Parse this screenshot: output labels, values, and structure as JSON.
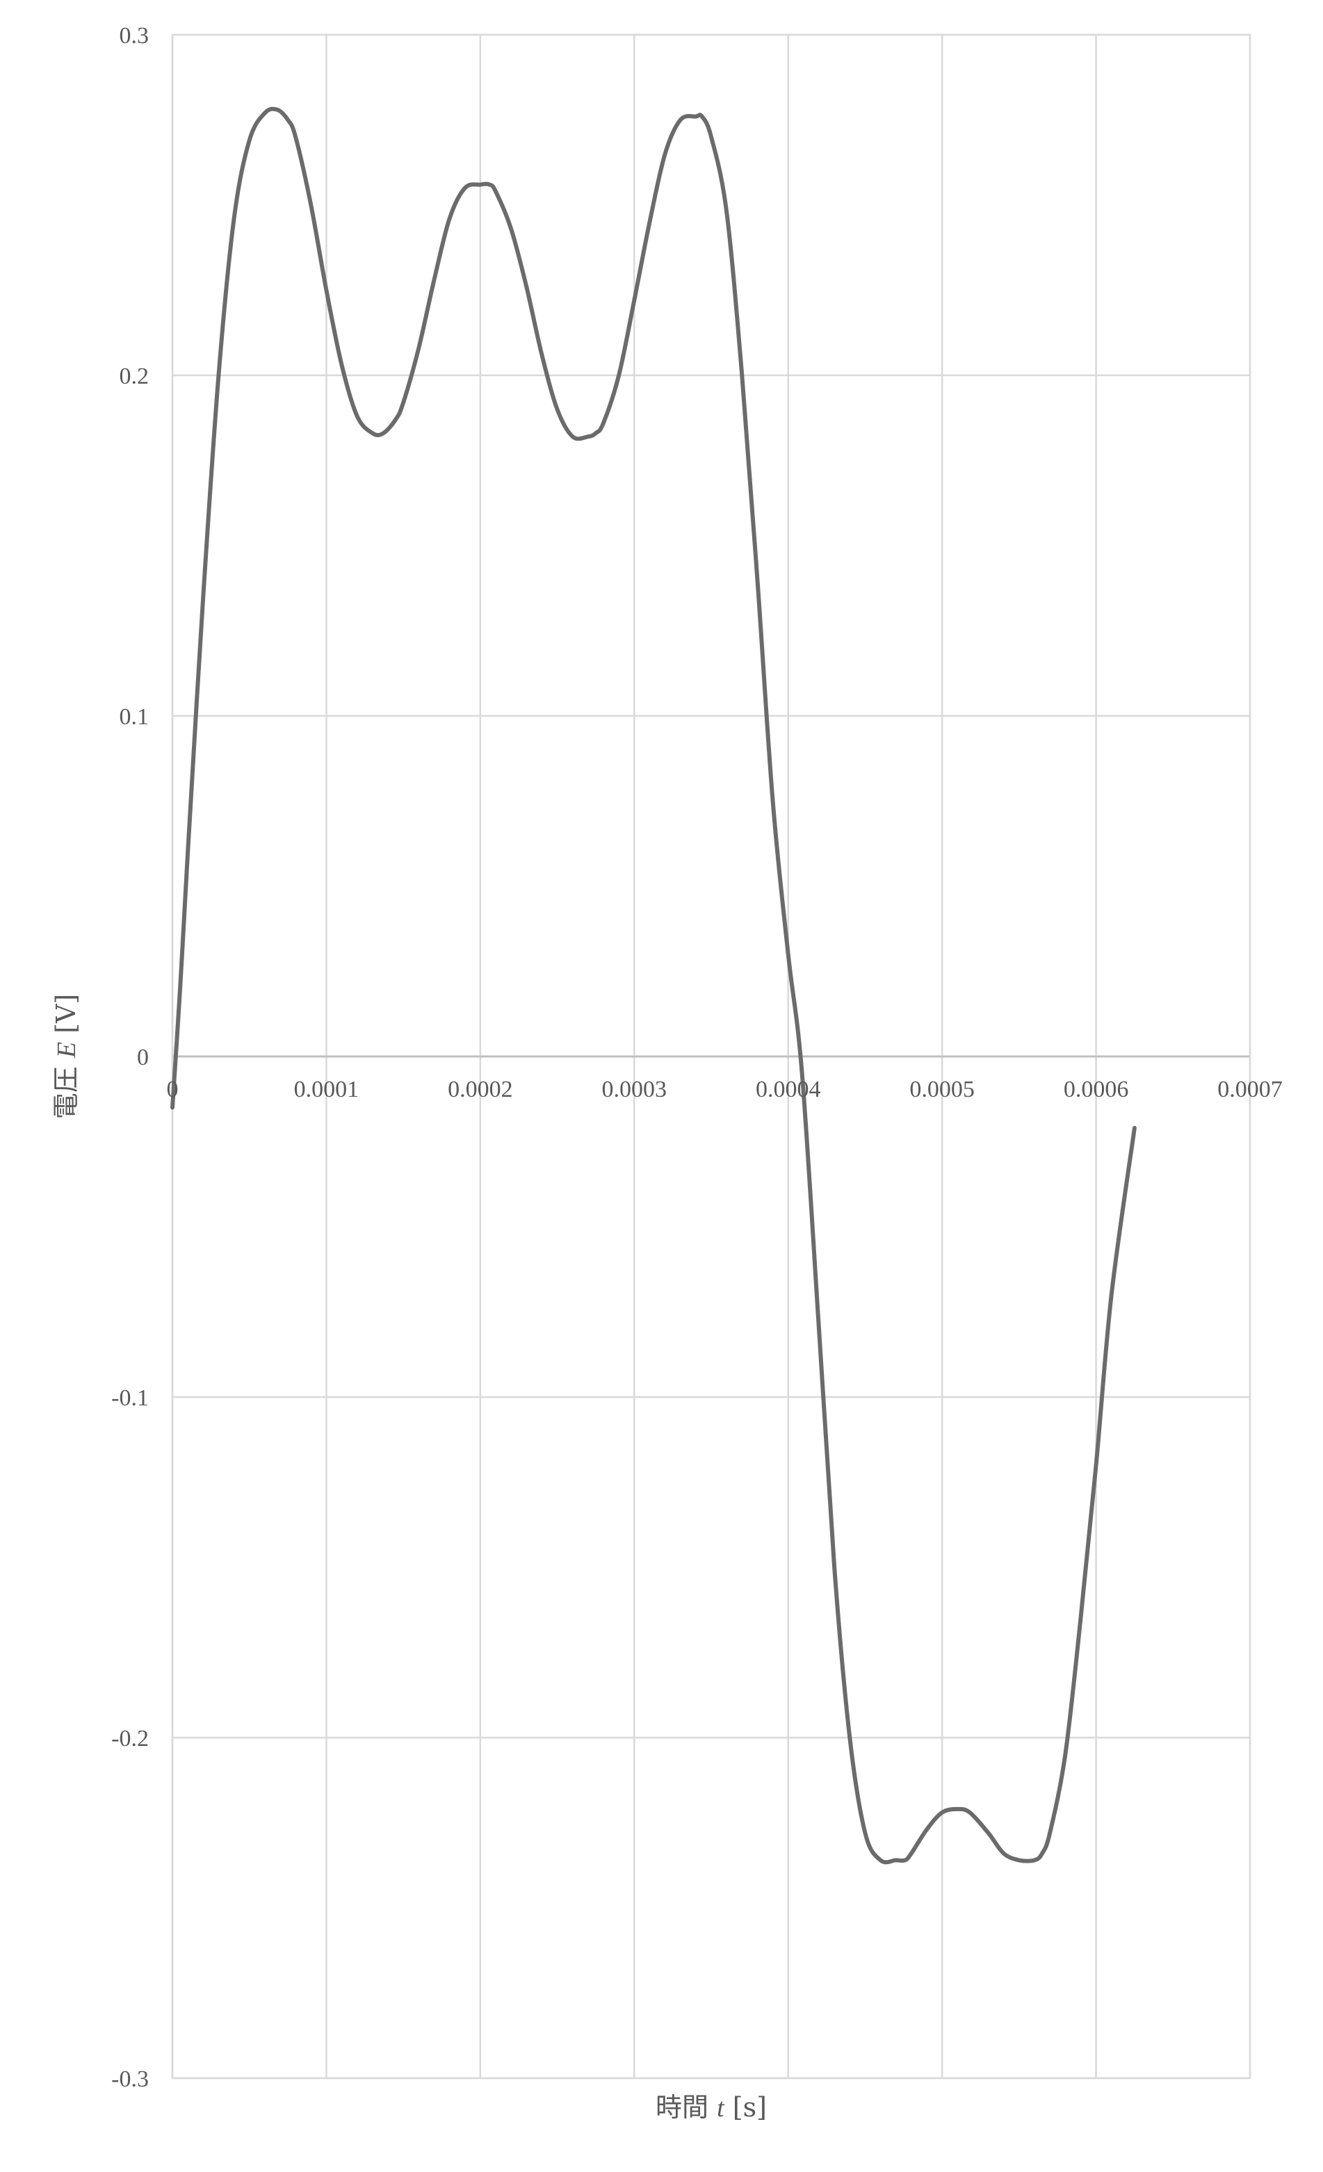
{
  "chart_data": {
    "type": "line",
    "title": "",
    "xlabel": {
      "prefix": "時間 ",
      "var": "t",
      "suffix": " [s]"
    },
    "ylabel": {
      "prefix": "電圧 ",
      "var": "E",
      "suffix": " [V]"
    },
    "xlim": [
      0,
      0.0007
    ],
    "ylim": [
      -0.3,
      0.3
    ],
    "x_ticks": [
      0,
      0.0001,
      0.0002,
      0.0003,
      0.0004,
      0.0005,
      0.0006,
      0.0007
    ],
    "x_tick_labels": [
      "0",
      "0.0001",
      "0.0002",
      "0.0003",
      "0.0004",
      "0.0005",
      "0.0006",
      "0.0007"
    ],
    "y_ticks": [
      0.3,
      0.2,
      0.1,
      0,
      -0.1,
      -0.2,
      -0.3
    ],
    "y_tick_labels": [
      "0.3",
      "0.2",
      "0.1",
      "0",
      "-0.1",
      "-0.2",
      "-0.3"
    ],
    "grid": true,
    "legend": "none",
    "colors": {
      "series": "#6b6b6b",
      "grid": "#d9d9d9",
      "axis": "#bfbfbf",
      "text": "#595959"
    },
    "series": [
      {
        "x": [
          0,
          5e-06,
          1e-05,
          2e-05,
          3e-05,
          4e-05,
          5e-05,
          6e-05,
          6.8e-05,
          7.5e-05,
          8e-05,
          9e-05,
          0.0001,
          0.00011,
          0.00012,
          0.00013,
          0.000137,
          0.000145,
          0.00015,
          0.00016,
          0.00017,
          0.00018,
          0.00019,
          0.0002,
          0.000206,
          0.00021,
          0.00022,
          0.00023,
          0.00024,
          0.00025,
          0.00026,
          0.00027,
          0.000275,
          0.00028,
          0.00029,
          0.0003,
          0.00031,
          0.00032,
          0.00033,
          0.00034,
          0.000344,
          0.00035,
          0.00036,
          0.00037,
          0.00038,
          0.00039,
          0.0004,
          0.000409,
          0.00042,
          0.00043,
          0.00044,
          0.00045,
          0.00046,
          0.00047,
          0.000476,
          0.00048,
          0.00049,
          0.0005,
          0.00051,
          0.000518,
          0.00053,
          0.00054,
          0.00055,
          0.00056,
          0.000565,
          0.00057,
          0.00058,
          0.00059,
          0.0006,
          0.00061,
          0.000625
        ],
        "y": [
          -0.015,
          0.02,
          0.06,
          0.135,
          0.2,
          0.246,
          0.269,
          0.277,
          0.278,
          0.275,
          0.27,
          0.25,
          0.225,
          0.203,
          0.188,
          0.183,
          0.183,
          0.187,
          0.192,
          0.208,
          0.228,
          0.246,
          0.255,
          0.256,
          0.256,
          0.254,
          0.243,
          0.226,
          0.206,
          0.19,
          0.182,
          0.182,
          0.183,
          0.186,
          0.2,
          0.222,
          0.245,
          0.265,
          0.275,
          0.276,
          0.276,
          0.27,
          0.248,
          0.2,
          0.14,
          0.075,
          0.03,
          -0.005,
          -0.08,
          -0.15,
          -0.2,
          -0.228,
          -0.236,
          -0.236,
          -0.236,
          -0.234,
          -0.227,
          -0.222,
          -0.221,
          -0.222,
          -0.228,
          -0.234,
          -0.236,
          -0.236,
          -0.234,
          -0.228,
          -0.205,
          -0.165,
          -0.12,
          -0.07,
          -0.021
        ]
      }
    ]
  }
}
